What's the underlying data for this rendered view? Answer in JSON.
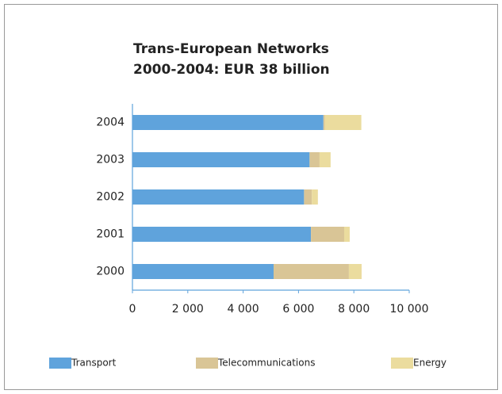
{
  "chart_data": {
    "type": "stacked_barh",
    "title": "Trans-European Networks",
    "subtitle": "2000-2004: EUR 38 billion",
    "categories": [
      "2000",
      "2001",
      "2002",
      "2003",
      "2004"
    ],
    "series": [
      {
        "name": "Transport",
        "color": "#5fa3dc",
        "values": [
          5100,
          6450,
          6200,
          6400,
          6900
        ]
      },
      {
        "name": "Telecommunications",
        "color": "#d9c596",
        "values": [
          2720,
          1200,
          280,
          360,
          50
        ]
      },
      {
        "name": "Energy",
        "color": "#ebdc9e",
        "values": [
          460,
          200,
          220,
          400,
          1320
        ]
      }
    ],
    "xlim": [
      0,
      10000
    ],
    "xticks": [
      0,
      {
        "value": 2000,
        "label": "2 000"
      },
      {
        "value": 4000,
        "label": "4 000"
      },
      {
        "value": 6000,
        "label": "6 000"
      },
      {
        "value": 8000,
        "label": "8 000"
      },
      {
        "value": 10000,
        "label": "10 000"
      }
    ]
  }
}
